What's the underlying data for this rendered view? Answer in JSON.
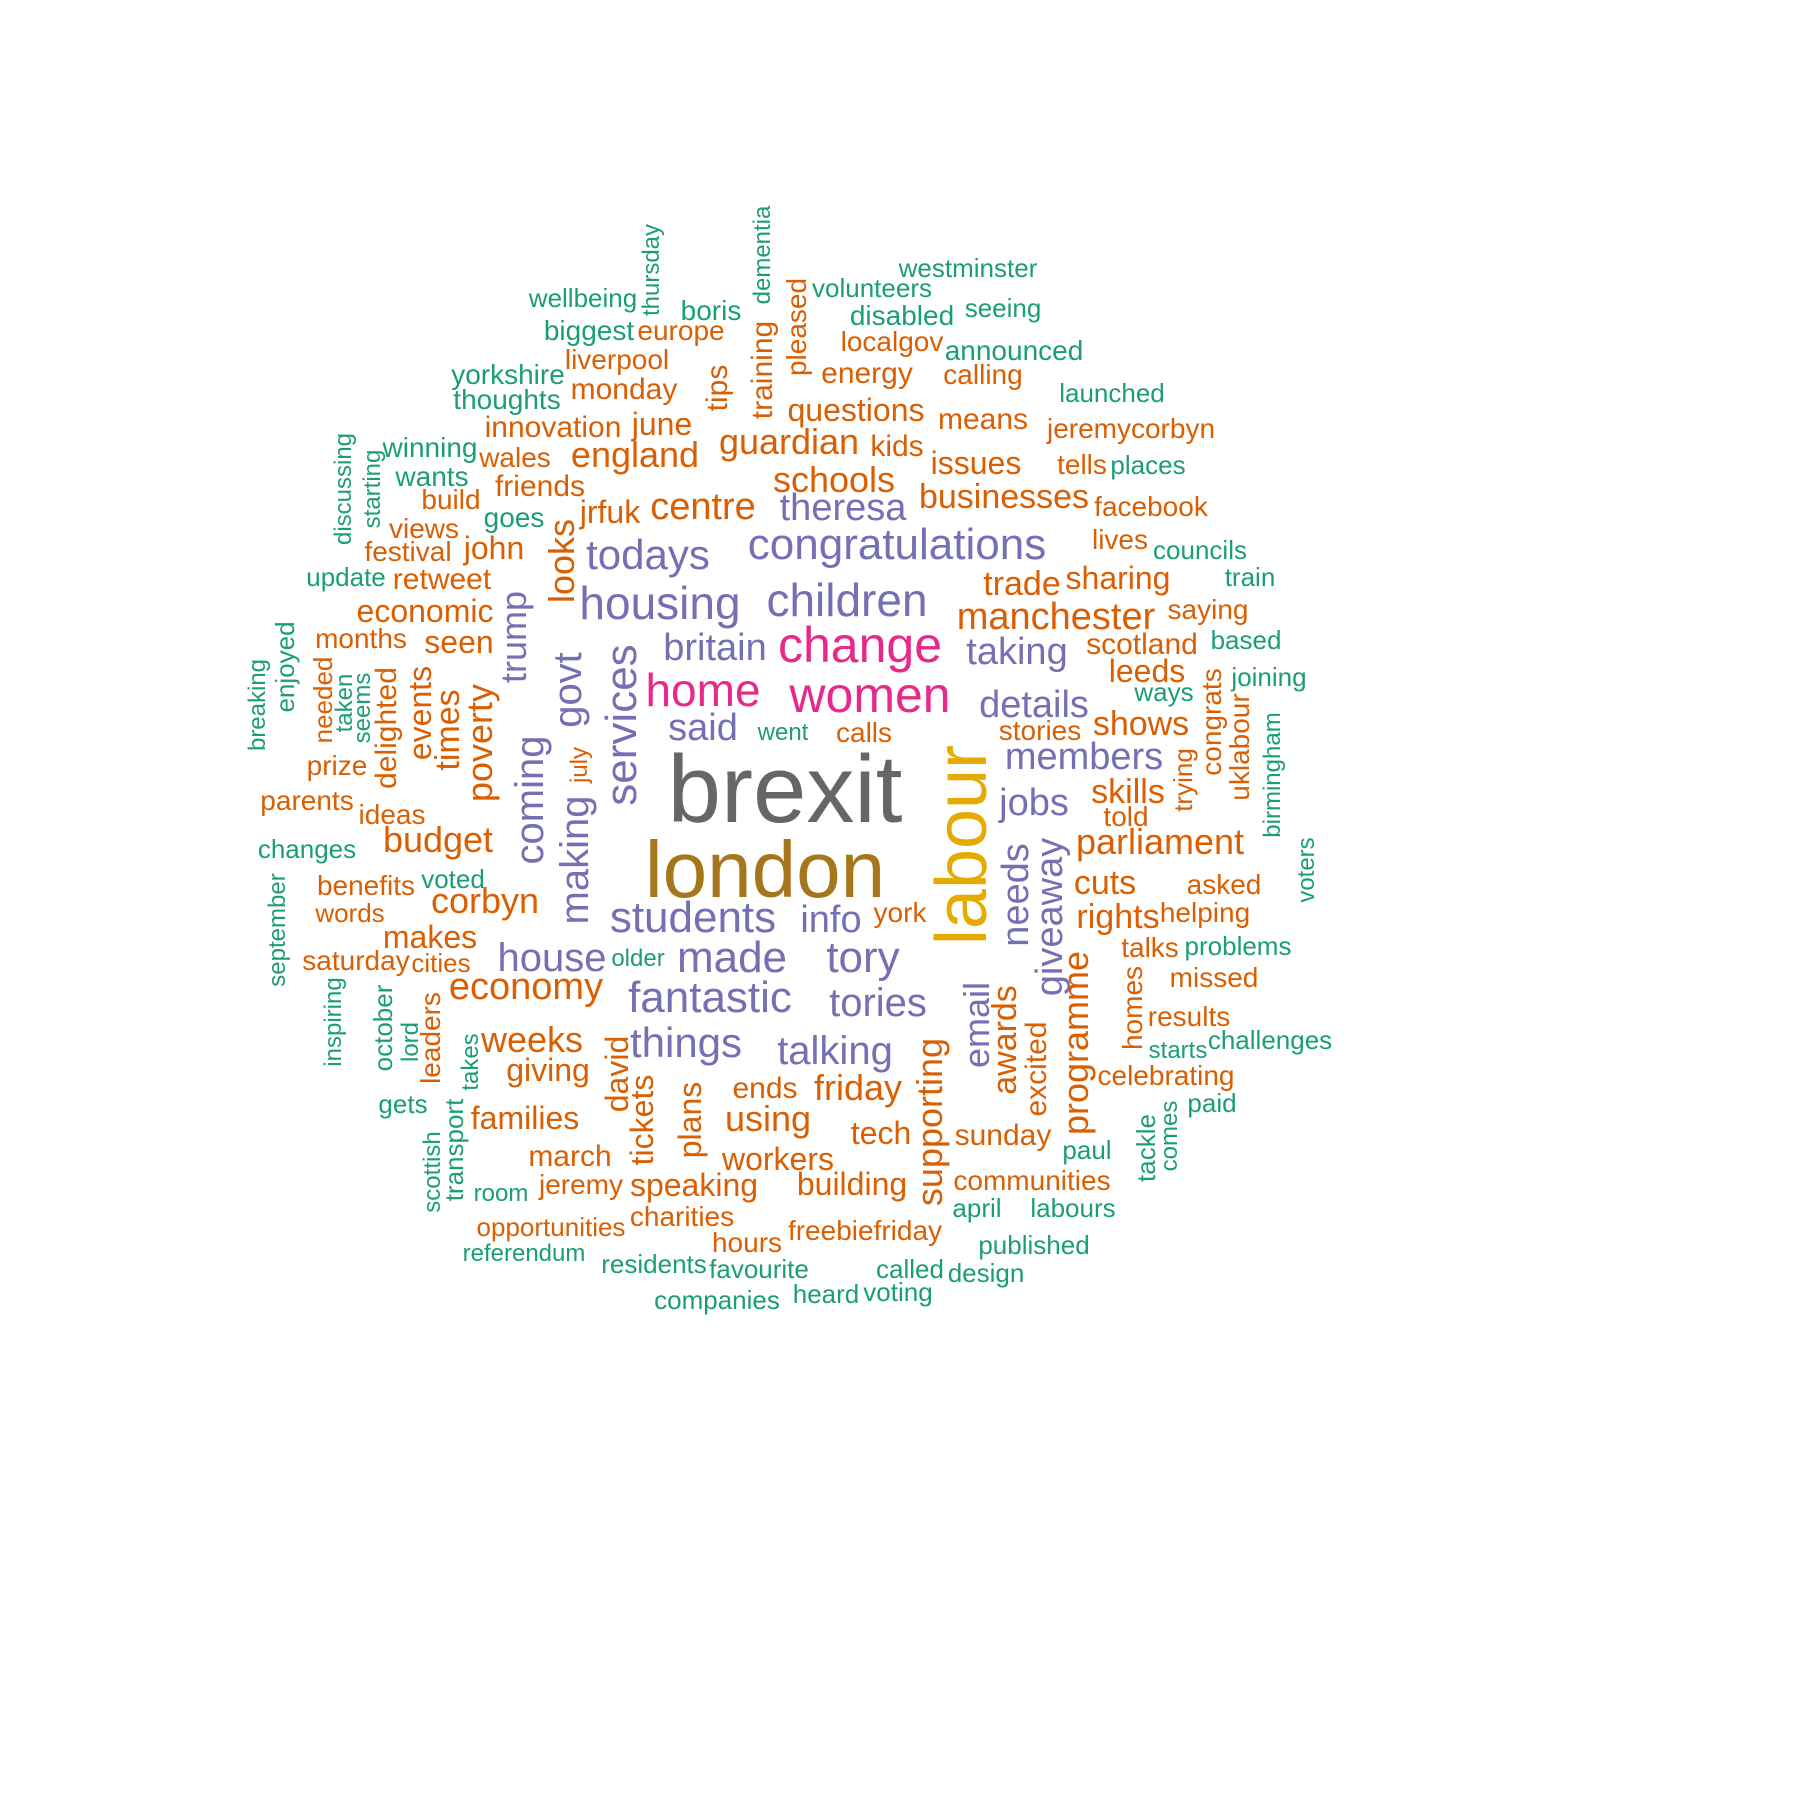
{
  "colors": {
    "teal": "#1b9e77",
    "orange": "#d95f02",
    "purple": "#7570b3",
    "pink": "#e7298a",
    "gold": "#e6ab02",
    "brown": "#a6761d",
    "gray": "#666666"
  },
  "words": [
    {
      "text": "brexit",
      "size": 96,
      "color": "gray",
      "rot": 0
    },
    {
      "text": "london",
      "size": 80,
      "color": "brown",
      "rot": 0
    },
    {
      "text": "labour",
      "size": 72,
      "color": "gold",
      "rot": 90
    },
    {
      "text": "women",
      "size": 50,
      "color": "pink",
      "rot": 0
    },
    {
      "text": "change",
      "size": 50,
      "color": "pink",
      "rot": 0
    },
    {
      "text": "home",
      "size": 46,
      "color": "pink",
      "rot": 0
    },
    {
      "text": "children",
      "size": 46,
      "color": "purple",
      "rot": 0
    },
    {
      "text": "housing",
      "size": 46,
      "color": "purple",
      "rot": 0
    },
    {
      "text": "congratulations",
      "size": 44,
      "color": "purple",
      "rot": 0
    },
    {
      "text": "students",
      "size": 44,
      "color": "purple",
      "rot": 0
    },
    {
      "text": "made",
      "size": 44,
      "color": "purple",
      "rot": 0
    },
    {
      "text": "fantastic",
      "size": 44,
      "color": "purple",
      "rot": 0
    },
    {
      "text": "services",
      "size": 44,
      "color": "purple",
      "rot": 90
    },
    {
      "text": "todays",
      "size": 42,
      "color": "purple",
      "rot": 0
    },
    {
      "text": "tory",
      "size": 44,
      "color": "purple",
      "rot": 0
    },
    {
      "text": "things",
      "size": 42,
      "color": "purple",
      "rot": 0
    },
    {
      "text": "tories",
      "size": 40,
      "color": "purple",
      "rot": 0
    },
    {
      "text": "talking",
      "size": 40,
      "color": "purple",
      "rot": 0
    },
    {
      "text": "house",
      "size": 40,
      "color": "purple",
      "rot": 0
    },
    {
      "text": "making",
      "size": 40,
      "color": "purple",
      "rot": 90
    },
    {
      "text": "coming",
      "size": 40,
      "color": "purple",
      "rot": 90
    },
    {
      "text": "govt",
      "size": 40,
      "color": "purple",
      "rot": 90
    },
    {
      "text": "theresa",
      "size": 38,
      "color": "purple",
      "rot": 0
    },
    {
      "text": "details",
      "size": 38,
      "color": "purple",
      "rot": 0
    },
    {
      "text": "jobs",
      "size": 38,
      "color": "purple",
      "rot": 0
    },
    {
      "text": "taking",
      "size": 38,
      "color": "purple",
      "rot": 0
    },
    {
      "text": "members",
      "size": 38,
      "color": "purple",
      "rot": 0
    },
    {
      "text": "info",
      "size": 38,
      "color": "purple",
      "rot": 0
    },
    {
      "text": "britain",
      "size": 38,
      "color": "purple",
      "rot": 0
    },
    {
      "text": "said",
      "size": 38,
      "color": "purple",
      "rot": 0
    },
    {
      "text": "needs",
      "size": 38,
      "color": "purple",
      "rot": 90
    },
    {
      "text": "giveaway",
      "size": 38,
      "color": "purple",
      "rot": 90
    },
    {
      "text": "email",
      "size": 36,
      "color": "purple",
      "rot": 90
    },
    {
      "text": "trump",
      "size": 36,
      "color": "purple",
      "rot": 90
    },
    {
      "text": "manchester",
      "size": 38,
      "color": "orange",
      "rot": 0
    },
    {
      "text": "centre",
      "size": 38,
      "color": "orange",
      "rot": 0
    },
    {
      "text": "economy",
      "size": 38,
      "color": "orange",
      "rot": 0
    },
    {
      "text": "guardian",
      "size": 36,
      "color": "orange",
      "rot": 0
    },
    {
      "text": "schools",
      "size": 36,
      "color": "orange",
      "rot": 0
    },
    {
      "text": "businesses",
      "size": 34,
      "color": "orange",
      "rot": 0
    },
    {
      "text": "england",
      "size": 36,
      "color": "orange",
      "rot": 0
    },
    {
      "text": "parliament",
      "size": 36,
      "color": "orange",
      "rot": 0
    },
    {
      "text": "budget",
      "size": 36,
      "color": "orange",
      "rot": 0
    },
    {
      "text": "corbyn",
      "size": 36,
      "color": "orange",
      "rot": 0
    },
    {
      "text": "weeks",
      "size": 36,
      "color": "orange",
      "rot": 0
    },
    {
      "text": "friday",
      "size": 36,
      "color": "orange",
      "rot": 0
    },
    {
      "text": "using",
      "size": 36,
      "color": "orange",
      "rot": 0
    },
    {
      "text": "trade",
      "size": 34,
      "color": "orange",
      "rot": 0
    },
    {
      "text": "sharing",
      "size": 32,
      "color": "orange",
      "rot": 0
    },
    {
      "text": "skills",
      "size": 34,
      "color": "orange",
      "rot": 0
    },
    {
      "text": "shows",
      "size": 34,
      "color": "orange",
      "rot": 0
    },
    {
      "text": "cuts",
      "size": 34,
      "color": "orange",
      "rot": 0
    },
    {
      "text": "rights",
      "size": 34,
      "color": "orange",
      "rot": 0
    },
    {
      "text": "leeds",
      "size": 32,
      "color": "orange",
      "rot": 0
    },
    {
      "text": "scotland",
      "size": 30,
      "color": "orange",
      "rot": 0
    },
    {
      "text": "questions",
      "size": 32,
      "color": "orange",
      "rot": 0
    },
    {
      "text": "issues",
      "size": 32,
      "color": "orange",
      "rot": 0
    },
    {
      "text": "means",
      "size": 30,
      "color": "orange",
      "rot": 0
    },
    {
      "text": "kids",
      "size": 30,
      "color": "orange",
      "rot": 0
    },
    {
      "text": "economic",
      "size": 32,
      "color": "orange",
      "rot": 0
    },
    {
      "text": "seen",
      "size": 32,
      "color": "orange",
      "rot": 0
    },
    {
      "text": "john",
      "size": 32,
      "color": "orange",
      "rot": 0
    },
    {
      "text": "jrfuk",
      "size": 32,
      "color": "orange",
      "rot": 0
    },
    {
      "text": "friends",
      "size": 30,
      "color": "orange",
      "rot": 0
    },
    {
      "text": "june",
      "size": 32,
      "color": "orange",
      "rot": 0
    },
    {
      "text": "monday",
      "size": 30,
      "color": "orange",
      "rot": 0
    },
    {
      "text": "energy",
      "size": 30,
      "color": "orange",
      "rot": 0
    },
    {
      "text": "calling",
      "size": 28,
      "color": "orange",
      "rot": 0
    },
    {
      "text": "makes",
      "size": 32,
      "color": "orange",
      "rot": 0
    },
    {
      "text": "giving",
      "size": 32,
      "color": "orange",
      "rot": 0
    },
    {
      "text": "families",
      "size": 32,
      "color": "orange",
      "rot": 0
    },
    {
      "text": "workers",
      "size": 32,
      "color": "orange",
      "rot": 0
    },
    {
      "text": "speaking",
      "size": 32,
      "color": "orange",
      "rot": 0
    },
    {
      "text": "building",
      "size": 32,
      "color": "orange",
      "rot": 0
    },
    {
      "text": "tech",
      "size": 32,
      "color": "orange",
      "rot": 0
    },
    {
      "text": "sunday",
      "size": 30,
      "color": "orange",
      "rot": 0
    },
    {
      "text": "communities",
      "size": 28,
      "color": "orange",
      "rot": 0
    },
    {
      "text": "march",
      "size": 30,
      "color": "orange",
      "rot": 0
    },
    {
      "text": "jeremy",
      "size": 28,
      "color": "orange",
      "rot": 0
    },
    {
      "text": "ends",
      "size": 30,
      "color": "orange",
      "rot": 0
    },
    {
      "text": "retweet",
      "size": 30,
      "color": "orange",
      "rot": 0
    },
    {
      "text": "months",
      "size": 28,
      "color": "orange",
      "rot": 0
    },
    {
      "text": "benefits",
      "size": 28,
      "color": "orange",
      "rot": 0
    },
    {
      "text": "parents",
      "size": 28,
      "color": "orange",
      "rot": 0
    },
    {
      "text": "ideas",
      "size": 28,
      "color": "orange",
      "rot": 0
    },
    {
      "text": "prize",
      "size": 28,
      "color": "orange",
      "rot": 0
    },
    {
      "text": "words",
      "size": 26,
      "color": "orange",
      "rot": 0
    },
    {
      "text": "saturday",
      "size": 28,
      "color": "orange",
      "rot": 0
    },
    {
      "text": "cities",
      "size": 26,
      "color": "orange",
      "rot": 0
    },
    {
      "text": "innovation",
      "size": 30,
      "color": "orange",
      "rot": 0
    },
    {
      "text": "wales",
      "size": 28,
      "color": "orange",
      "rot": 0
    },
    {
      "text": "liverpool",
      "size": 28,
      "color": "orange",
      "rot": 0
    },
    {
      "text": "europe",
      "size": 28,
      "color": "orange",
      "rot": 0
    },
    {
      "text": "localgov",
      "size": 28,
      "color": "orange",
      "rot": 0
    },
    {
      "text": "build",
      "size": 28,
      "color": "orange",
      "rot": 0
    },
    {
      "text": "views",
      "size": 28,
      "color": "orange",
      "rot": 0
    },
    {
      "text": "festival",
      "size": 28,
      "color": "orange",
      "rot": 0
    },
    {
      "text": "jeremycorbyn",
      "size": 28,
      "color": "orange",
      "rot": 0
    },
    {
      "text": "tells",
      "size": 28,
      "color": "orange",
      "rot": 0
    },
    {
      "text": "facebook",
      "size": 28,
      "color": "orange",
      "rot": 0
    },
    {
      "text": "lives",
      "size": 28,
      "color": "orange",
      "rot": 0
    },
    {
      "text": "saying",
      "size": 28,
      "color": "orange",
      "rot": 0
    },
    {
      "text": "stories",
      "size": 28,
      "color": "orange",
      "rot": 0
    },
    {
      "text": "calls",
      "size": 28,
      "color": "orange",
      "rot": 0
    },
    {
      "text": "york",
      "size": 28,
      "color": "orange",
      "rot": 0
    },
    {
      "text": "told",
      "size": 28,
      "color": "orange",
      "rot": 0
    },
    {
      "text": "asked",
      "size": 28,
      "color": "orange",
      "rot": 0
    },
    {
      "text": "helping",
      "size": 28,
      "color": "orange",
      "rot": 0
    },
    {
      "text": "talks",
      "size": 28,
      "color": "orange",
      "rot": 0
    },
    {
      "text": "missed",
      "size": 28,
      "color": "orange",
      "rot": 0
    },
    {
      "text": "results",
      "size": 28,
      "color": "orange",
      "rot": 0
    },
    {
      "text": "celebrating",
      "size": 28,
      "color": "orange",
      "rot": 0
    },
    {
      "text": "opportunities",
      "size": 26,
      "color": "orange",
      "rot": 0
    },
    {
      "text": "charities",
      "size": 28,
      "color": "orange",
      "rot": 0
    },
    {
      "text": "hours",
      "size": 28,
      "color": "orange",
      "rot": 0
    },
    {
      "text": "freebiefriday",
      "size": 28,
      "color": "orange",
      "rot": 0
    },
    {
      "text": "looks",
      "size": 36,
      "color": "orange",
      "rot": 90
    },
    {
      "text": "poverty",
      "size": 36,
      "color": "orange",
      "rot": 90
    },
    {
      "text": "times",
      "size": 34,
      "color": "orange",
      "rot": 90
    },
    {
      "text": "events",
      "size": 32,
      "color": "orange",
      "rot": 90
    },
    {
      "text": "delighted",
      "size": 30,
      "color": "orange",
      "rot": 90
    },
    {
      "text": "needed",
      "size": 26,
      "color": "orange",
      "rot": 90
    },
    {
      "text": "leaders",
      "size": 28,
      "color": "orange",
      "rot": 90
    },
    {
      "text": "david",
      "size": 32,
      "color": "orange",
      "rot": 90
    },
    {
      "text": "tickets",
      "size": 32,
      "color": "orange",
      "rot": 90
    },
    {
      "text": "plans",
      "size": 32,
      "color": "orange",
      "rot": 90
    },
    {
      "text": "supporting",
      "size": 36,
      "color": "orange",
      "rot": 90
    },
    {
      "text": "awards",
      "size": 34,
      "color": "orange",
      "rot": 90
    },
    {
      "text": "excited",
      "size": 30,
      "color": "orange",
      "rot": 90
    },
    {
      "text": "programme",
      "size": 36,
      "color": "orange",
      "rot": 90
    },
    {
      "text": "homes",
      "size": 28,
      "color": "orange",
      "rot": 90
    },
    {
      "text": "tips",
      "size": 30,
      "color": "orange",
      "rot": 90
    },
    {
      "text": "training",
      "size": 30,
      "color": "orange",
      "rot": 90
    },
    {
      "text": "pleased",
      "size": 28,
      "color": "orange",
      "rot": 90
    },
    {
      "text": "july",
      "size": 24,
      "color": "orange",
      "rot": 90
    },
    {
      "text": "trying",
      "size": 26,
      "color": "orange",
      "rot": 90
    },
    {
      "text": "congrats",
      "size": 28,
      "color": "orange",
      "rot": 90
    },
    {
      "text": "uklabour",
      "size": 28,
      "color": "orange",
      "rot": 90
    },
    {
      "text": "westminster",
      "size": 26,
      "color": "teal",
      "rot": 0
    },
    {
      "text": "volunteers",
      "size": 26,
      "color": "teal",
      "rot": 0
    },
    {
      "text": "wellbeing",
      "size": 26,
      "color": "teal",
      "rot": 0
    },
    {
      "text": "boris",
      "size": 28,
      "color": "teal",
      "rot": 0
    },
    {
      "text": "seeing",
      "size": 26,
      "color": "teal",
      "rot": 0
    },
    {
      "text": "disabled",
      "size": 28,
      "color": "teal",
      "rot": 0
    },
    {
      "text": "biggest",
      "size": 28,
      "color": "teal",
      "rot": 0
    },
    {
      "text": "announced",
      "size": 28,
      "color": "teal",
      "rot": 0
    },
    {
      "text": "yorkshire",
      "size": 28,
      "color": "teal",
      "rot": 0
    },
    {
      "text": "thoughts",
      "size": 28,
      "color": "teal",
      "rot": 0
    },
    {
      "text": "launched",
      "size": 26,
      "color": "teal",
      "rot": 0
    },
    {
      "text": "winning",
      "size": 28,
      "color": "teal",
      "rot": 0
    },
    {
      "text": "wants",
      "size": 28,
      "color": "teal",
      "rot": 0
    },
    {
      "text": "places",
      "size": 26,
      "color": "teal",
      "rot": 0
    },
    {
      "text": "goes",
      "size": 28,
      "color": "teal",
      "rot": 0
    },
    {
      "text": "councils",
      "size": 26,
      "color": "teal",
      "rot": 0
    },
    {
      "text": "update",
      "size": 26,
      "color": "teal",
      "rot": 0
    },
    {
      "text": "train",
      "size": 26,
      "color": "teal",
      "rot": 0
    },
    {
      "text": "based",
      "size": 26,
      "color": "teal",
      "rot": 0
    },
    {
      "text": "joining",
      "size": 26,
      "color": "teal",
      "rot": 0
    },
    {
      "text": "ways",
      "size": 26,
      "color": "teal",
      "rot": 0
    },
    {
      "text": "went",
      "size": 24,
      "color": "teal",
      "rot": 0
    },
    {
      "text": "changes",
      "size": 26,
      "color": "teal",
      "rot": 0
    },
    {
      "text": "voted",
      "size": 26,
      "color": "teal",
      "rot": 0
    },
    {
      "text": "older",
      "size": 24,
      "color": "teal",
      "rot": 0
    },
    {
      "text": "problems",
      "size": 26,
      "color": "teal",
      "rot": 0
    },
    {
      "text": "starts",
      "size": 24,
      "color": "teal",
      "rot": 0
    },
    {
      "text": "challenges",
      "size": 26,
      "color": "teal",
      "rot": 0
    },
    {
      "text": "paid",
      "size": 26,
      "color": "teal",
      "rot": 0
    },
    {
      "text": "gets",
      "size": 26,
      "color": "teal",
      "rot": 0
    },
    {
      "text": "paul",
      "size": 26,
      "color": "teal",
      "rot": 0
    },
    {
      "text": "room",
      "size": 24,
      "color": "teal",
      "rot": 0
    },
    {
      "text": "april",
      "size": 26,
      "color": "teal",
      "rot": 0
    },
    {
      "text": "labours",
      "size": 26,
      "color": "teal",
      "rot": 0
    },
    {
      "text": "referendum",
      "size": 24,
      "color": "teal",
      "rot": 0
    },
    {
      "text": "published",
      "size": 26,
      "color": "teal",
      "rot": 0
    },
    {
      "text": "residents",
      "size": 26,
      "color": "teal",
      "rot": 0
    },
    {
      "text": "favourite",
      "size": 26,
      "color": "teal",
      "rot": 0
    },
    {
      "text": "called",
      "size": 26,
      "color": "teal",
      "rot": 0
    },
    {
      "text": "design",
      "size": 26,
      "color": "teal",
      "rot": 0
    },
    {
      "text": "heard",
      "size": 26,
      "color": "teal",
      "rot": 0
    },
    {
      "text": "voting",
      "size": 26,
      "color": "teal",
      "rot": 0
    },
    {
      "text": "companies",
      "size": 26,
      "color": "teal",
      "rot": 0
    },
    {
      "text": "thursday",
      "size": 24,
      "color": "teal",
      "rot": 90
    },
    {
      "text": "dementia",
      "size": 24,
      "color": "teal",
      "rot": 90
    },
    {
      "text": "discussing",
      "size": 24,
      "color": "teal",
      "rot": 90
    },
    {
      "text": "starting",
      "size": 24,
      "color": "teal",
      "rot": 90
    },
    {
      "text": "breaking",
      "size": 24,
      "color": "teal",
      "rot": 90
    },
    {
      "text": "enjoyed",
      "size": 26,
      "color": "teal",
      "rot": 90
    },
    {
      "text": "taken",
      "size": 24,
      "color": "teal",
      "rot": 90
    },
    {
      "text": "seems",
      "size": 24,
      "color": "teal",
      "rot": 90
    },
    {
      "text": "birmingham",
      "size": 24,
      "color": "teal",
      "rot": 90
    },
    {
      "text": "voters",
      "size": 24,
      "color": "teal",
      "rot": 90
    },
    {
      "text": "september",
      "size": 24,
      "color": "teal",
      "rot": 90
    },
    {
      "text": "inspiring",
      "size": 24,
      "color": "teal",
      "rot": 90
    },
    {
      "text": "october",
      "size": 26,
      "color": "teal",
      "rot": 90
    },
    {
      "text": "lord",
      "size": 24,
      "color": "teal",
      "rot": 90
    },
    {
      "text": "takes",
      "size": 24,
      "color": "teal",
      "rot": 90
    },
    {
      "text": "scottish",
      "size": 24,
      "color": "teal",
      "rot": 90
    },
    {
      "text": "transport",
      "size": 26,
      "color": "teal",
      "rot": 90
    },
    {
      "text": "tackle",
      "size": 26,
      "color": "teal",
      "rot": 90
    },
    {
      "text": "comes",
      "size": 24,
      "color": "teal",
      "rot": 90
    }
  ]
}
